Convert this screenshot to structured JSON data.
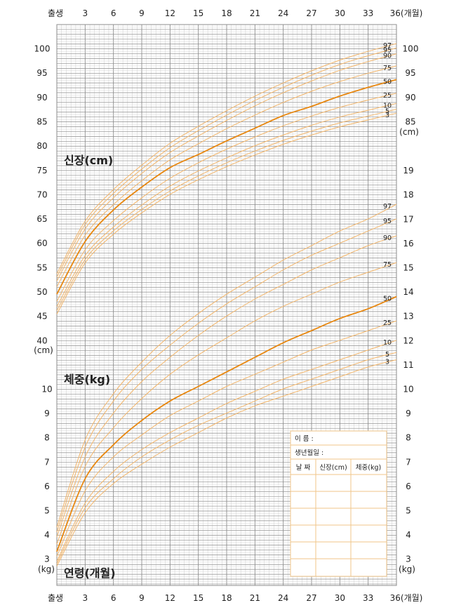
{
  "chart_data": {
    "type": "line",
    "title": "",
    "x_axis": {
      "range": [
        0,
        36
      ],
      "ticks": [
        0,
        3,
        6,
        9,
        12,
        15,
        18,
        21,
        24,
        27,
        30,
        33,
        36
      ],
      "tick_labels": [
        "출생",
        "3",
        "6",
        "9",
        "12",
        "15",
        "18",
        "21",
        "24",
        "27",
        "30",
        "33",
        "36(개월)"
      ],
      "title": "연령(개월)"
    },
    "height_chart": {
      "title": "신장(cm)",
      "unit_left": "(cm)",
      "unit_right": "(cm)",
      "left_ticks": [
        "100",
        "95",
        "90",
        "85",
        "80",
        "75",
        "70",
        "65",
        "60",
        "55",
        "50",
        "45",
        "40"
      ],
      "right_ticks": [
        "100",
        "95",
        "90",
        "85"
      ],
      "grid": true,
      "series": [
        {
          "name": "97",
          "x": [
            0,
            3,
            6,
            9,
            12,
            15,
            18,
            21,
            24,
            27,
            30,
            33,
            36
          ],
          "y": [
            53.7,
            64.5,
            71.0,
            76.0,
            80.5,
            84.0,
            87.2,
            90.2,
            92.9,
            95.4,
            97.6,
            99.4,
            101.0
          ]
        },
        {
          "name": "95",
          "x": [
            0,
            3,
            6,
            9,
            12,
            15,
            18,
            21,
            24,
            27,
            30,
            33,
            36
          ],
          "y": [
            53.0,
            63.8,
            70.2,
            75.2,
            79.6,
            83.1,
            86.3,
            89.3,
            92.0,
            94.5,
            96.7,
            98.5,
            100.1
          ]
        },
        {
          "name": "90",
          "x": [
            0,
            3,
            6,
            9,
            12,
            15,
            18,
            21,
            24,
            27,
            30,
            33,
            36
          ],
          "y": [
            52.2,
            62.9,
            69.3,
            74.3,
            78.6,
            82.0,
            85.2,
            88.2,
            90.9,
            93.3,
            95.5,
            97.3,
            98.9
          ]
        },
        {
          "name": "75",
          "x": [
            0,
            3,
            6,
            9,
            12,
            15,
            18,
            21,
            24,
            27,
            30,
            33,
            36
          ],
          "y": [
            51.0,
            61.6,
            67.9,
            72.8,
            77.1,
            80.4,
            83.5,
            86.3,
            88.9,
            91.2,
            93.2,
            94.9,
            96.4
          ]
        },
        {
          "name": "50",
          "x": [
            0,
            3,
            6,
            9,
            12,
            15,
            18,
            21,
            24,
            27,
            30,
            33,
            36
          ],
          "y": [
            49.5,
            60.3,
            66.8,
            71.5,
            75.5,
            78.2,
            81.0,
            83.6,
            86.2,
            88.1,
            90.2,
            92.0,
            93.6
          ]
        },
        {
          "name": "25",
          "x": [
            0,
            3,
            6,
            9,
            12,
            15,
            18,
            21,
            24,
            27,
            30,
            33,
            36
          ],
          "y": [
            48.0,
            58.6,
            64.6,
            69.3,
            73.3,
            76.5,
            79.3,
            81.8,
            84.1,
            86.1,
            87.9,
            89.4,
            90.8
          ]
        },
        {
          "name": "10",
          "x": [
            0,
            3,
            6,
            9,
            12,
            15,
            18,
            21,
            24,
            27,
            30,
            33,
            36
          ],
          "y": [
            46.9,
            57.4,
            63.3,
            67.8,
            71.7,
            74.8,
            77.5,
            80.0,
            82.2,
            84.2,
            85.9,
            87.3,
            88.7
          ]
        },
        {
          "name": "5",
          "x": [
            0,
            3,
            6,
            9,
            12,
            15,
            18,
            21,
            24,
            27,
            30,
            33,
            36
          ],
          "y": [
            46.1,
            56.6,
            62.5,
            66.9,
            70.7,
            73.8,
            76.5,
            78.9,
            81.1,
            83.0,
            84.7,
            86.1,
            87.5
          ]
        },
        {
          "name": "3",
          "x": [
            0,
            3,
            6,
            9,
            12,
            15,
            18,
            21,
            24,
            27,
            30,
            33,
            36
          ],
          "y": [
            45.4,
            55.9,
            61.8,
            66.2,
            70.0,
            73.0,
            75.7,
            78.1,
            80.3,
            82.2,
            83.9,
            85.3,
            86.7
          ]
        }
      ]
    },
    "weight_chart": {
      "title": "체중(kg)",
      "unit_left": "(kg)",
      "unit_right": "(kg)",
      "left_ticks": [
        "10",
        "9",
        "8",
        "7",
        "6",
        "5",
        "4",
        "3"
      ],
      "right_ticks": [
        "19",
        "18",
        "17",
        "16",
        "15",
        "14",
        "13",
        "12",
        "11",
        "10",
        "9",
        "8",
        "7",
        "6",
        "5",
        "4",
        "3"
      ],
      "grid": true,
      "series": [
        {
          "name": "97",
          "x": [
            0,
            3,
            6,
            9,
            12,
            15,
            18,
            21,
            24,
            27,
            30,
            33,
            36
          ],
          "y": [
            4.3,
            7.9,
            9.8,
            11.1,
            12.2,
            13.1,
            13.9,
            14.6,
            15.3,
            15.9,
            16.5,
            17.0,
            17.6
          ]
        },
        {
          "name": "95",
          "x": [
            0,
            3,
            6,
            9,
            12,
            15,
            18,
            21,
            24,
            27,
            30,
            33,
            36
          ],
          "y": [
            4.1,
            7.6,
            9.5,
            10.8,
            11.8,
            12.7,
            13.5,
            14.2,
            14.9,
            15.5,
            16.0,
            16.5,
            17.0
          ]
        },
        {
          "name": "90",
          "x": [
            0,
            3,
            6,
            9,
            12,
            15,
            18,
            21,
            24,
            27,
            30,
            33,
            36
          ],
          "y": [
            3.9,
            7.2,
            9.0,
            10.3,
            11.3,
            12.2,
            13.0,
            13.7,
            14.3,
            14.9,
            15.4,
            15.9,
            16.3
          ]
        },
        {
          "name": "75",
          "x": [
            0,
            3,
            6,
            9,
            12,
            15,
            18,
            21,
            24,
            27,
            30,
            33,
            36
          ],
          "y": [
            3.6,
            6.8,
            8.4,
            9.6,
            10.6,
            11.4,
            12.1,
            12.8,
            13.4,
            13.9,
            14.4,
            14.8,
            15.2
          ]
        },
        {
          "name": "50",
          "x": [
            0,
            3,
            6,
            9,
            12,
            15,
            18,
            21,
            24,
            27,
            30,
            33,
            36
          ],
          "y": [
            3.3,
            6.3,
            7.7,
            8.7,
            9.5,
            10.1,
            10.7,
            11.3,
            11.9,
            12.4,
            12.9,
            13.3,
            13.8
          ]
        },
        {
          "name": "25",
          "x": [
            0,
            3,
            6,
            9,
            12,
            15,
            18,
            21,
            24,
            27,
            30,
            33,
            36
          ],
          "y": [
            3.1,
            5.8,
            7.2,
            8.1,
            8.9,
            9.5,
            10.1,
            10.6,
            11.1,
            11.6,
            12.0,
            12.4,
            12.8
          ]
        },
        {
          "name": "10",
          "x": [
            0,
            3,
            6,
            9,
            12,
            15,
            18,
            21,
            24,
            27,
            30,
            33,
            36
          ],
          "y": [
            2.9,
            5.3,
            6.6,
            7.5,
            8.2,
            8.8,
            9.4,
            9.9,
            10.4,
            10.8,
            11.2,
            11.6,
            12.0
          ]
        },
        {
          "name": "5",
          "x": [
            0,
            3,
            6,
            9,
            12,
            15,
            18,
            21,
            24,
            27,
            30,
            33,
            36
          ],
          "y": [
            2.8,
            5.1,
            6.3,
            7.2,
            7.9,
            8.5,
            9.0,
            9.5,
            10.0,
            10.4,
            10.8,
            11.2,
            11.5
          ]
        },
        {
          "name": "3",
          "x": [
            0,
            3,
            6,
            9,
            12,
            15,
            18,
            21,
            24,
            27,
            30,
            33,
            36
          ],
          "y": [
            2.7,
            4.9,
            6.1,
            6.9,
            7.6,
            8.2,
            8.8,
            9.3,
            9.7,
            10.1,
            10.5,
            10.9,
            11.2
          ]
        }
      ]
    },
    "colors": {
      "major_grid": "#8c8c8c",
      "minor_grid": "#cfcfcf",
      "percentile_line": "#f4b66a",
      "median_line": "#e8870f",
      "form_border": "#f0c58a"
    }
  },
  "record_form": {
    "name_label": "이      름 :",
    "birthdate_label": "생년월일 :",
    "col_date": "날  짜",
    "col_height": "신장(cm)",
    "col_weight": "체중(kg)"
  }
}
